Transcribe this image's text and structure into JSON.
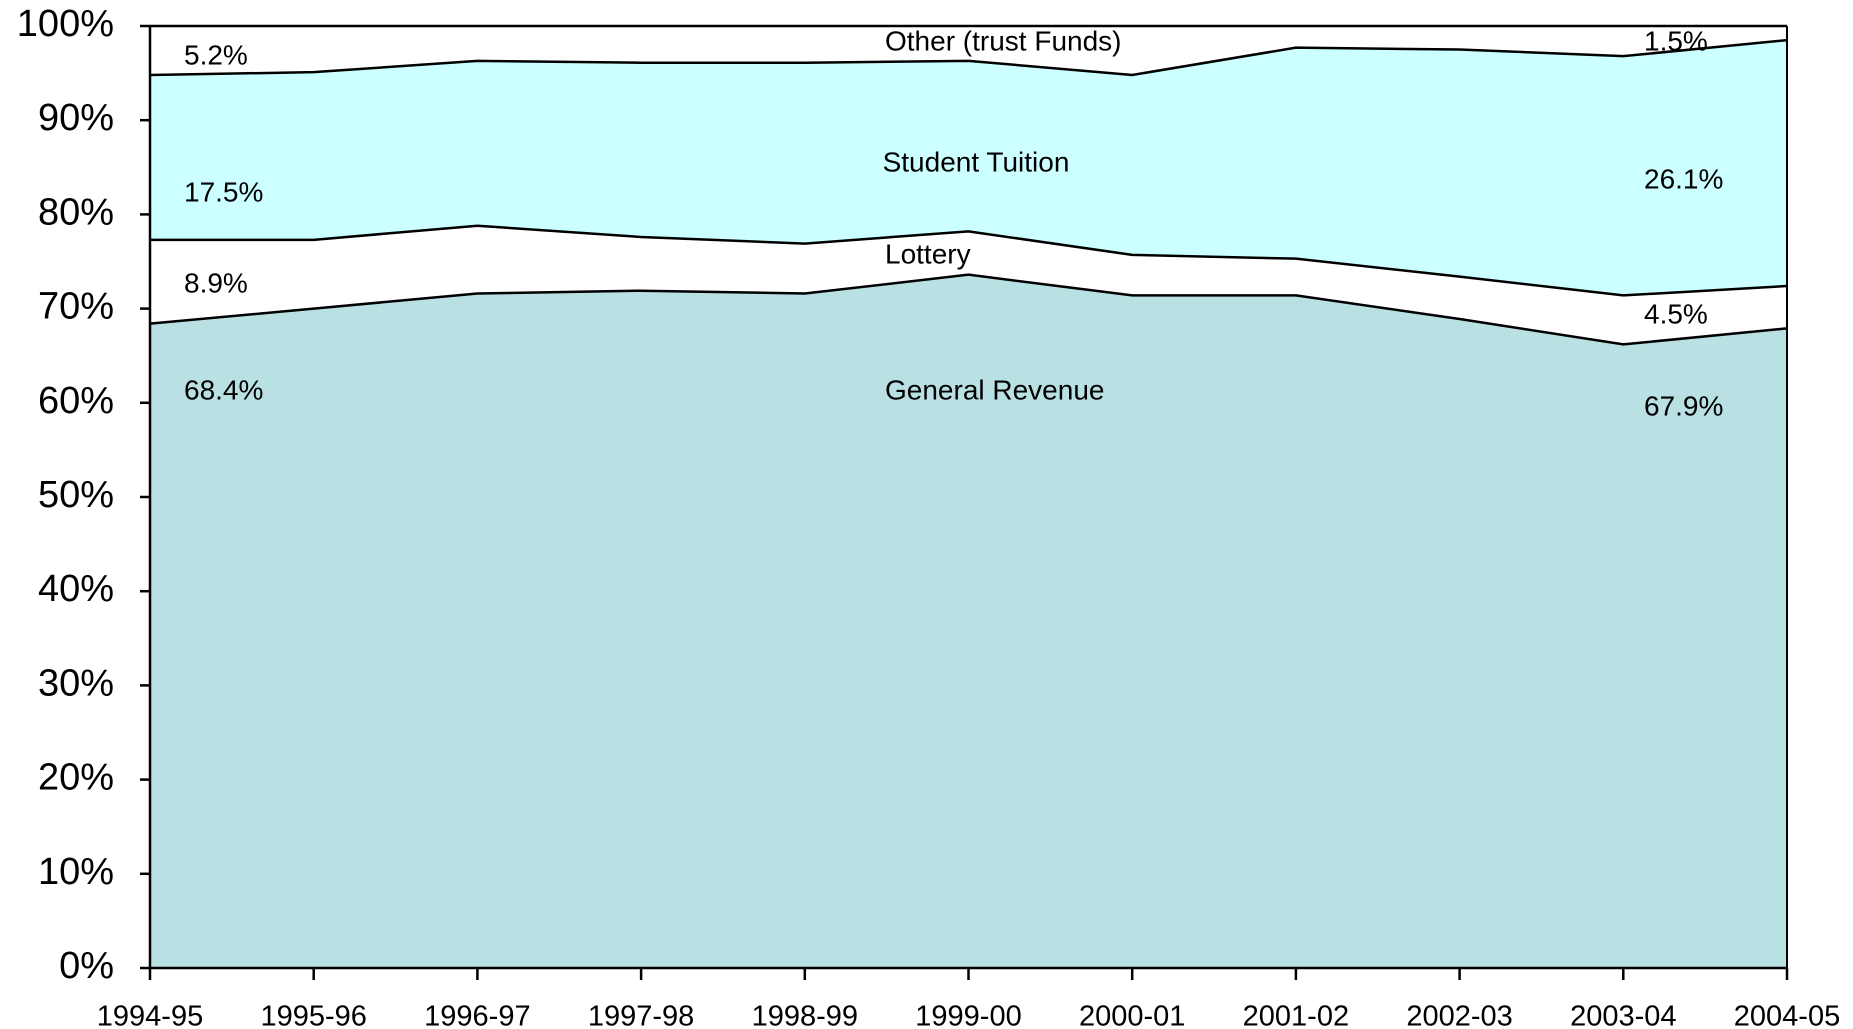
{
  "chart_data": {
    "type": "stacked_area",
    "categories": [
      "1994-95",
      "1995-96",
      "1996-97",
      "1997-98",
      "1998-99",
      "1999-00",
      "2000-01",
      "2001-02",
      "2002-03",
      "2003-04",
      "2004-05"
    ],
    "series": [
      {
        "name": "General Revenue",
        "color": "#b9e0e3",
        "values": [
          68.4,
          70.0,
          71.6,
          71.9,
          71.6,
          73.6,
          71.4,
          71.4,
          68.9,
          66.2,
          67.9
        ],
        "value_labels": [
          "68.4%",
          null,
          null,
          null,
          null,
          null,
          null,
          null,
          null,
          null,
          "67.9%"
        ]
      },
      {
        "name": "Lottery",
        "color": "#ffffff",
        "values": [
          8.9,
          7.3,
          7.2,
          5.7,
          5.3,
          4.6,
          4.3,
          3.9,
          4.5,
          5.2,
          4.5
        ],
        "value_labels": [
          "8.9%",
          null,
          null,
          null,
          null,
          null,
          null,
          null,
          null,
          null,
          "4.5%"
        ]
      },
      {
        "name": "Student Tuition",
        "color": "#ccffff",
        "values": [
          17.5,
          17.8,
          17.5,
          18.5,
          19.2,
          18.1,
          19.1,
          22.4,
          24.1,
          25.4,
          26.1
        ],
        "value_labels": [
          "17.5%",
          null,
          null,
          null,
          null,
          null,
          null,
          null,
          null,
          null,
          "26.1%"
        ]
      },
      {
        "name": "Other (trust Funds)",
        "color": "#ffffff",
        "values": [
          5.2,
          4.9,
          3.7,
          3.9,
          3.9,
          3.7,
          5.2,
          2.3,
          2.5,
          3.2,
          1.5
        ],
        "value_labels": [
          "5.2%",
          null,
          null,
          null,
          null,
          null,
          null,
          null,
          null,
          null,
          "1.5%"
        ]
      }
    ],
    "ylim": [
      0,
      100
    ],
    "yticks": [
      {
        "value": 0,
        "label": "0%"
      },
      {
        "value": 10,
        "label": "10%"
      },
      {
        "value": 20,
        "label": "20%"
      },
      {
        "value": 30,
        "label": "30%"
      },
      {
        "value": 40,
        "label": "40%"
      },
      {
        "value": 50,
        "label": "50%"
      },
      {
        "value": 60,
        "label": "60%"
      },
      {
        "value": 70,
        "label": "70%"
      },
      {
        "value": 80,
        "label": "80%"
      },
      {
        "value": 90,
        "label": "90%"
      },
      {
        "value": 100,
        "label": "100%"
      }
    ],
    "grid": false
  }
}
